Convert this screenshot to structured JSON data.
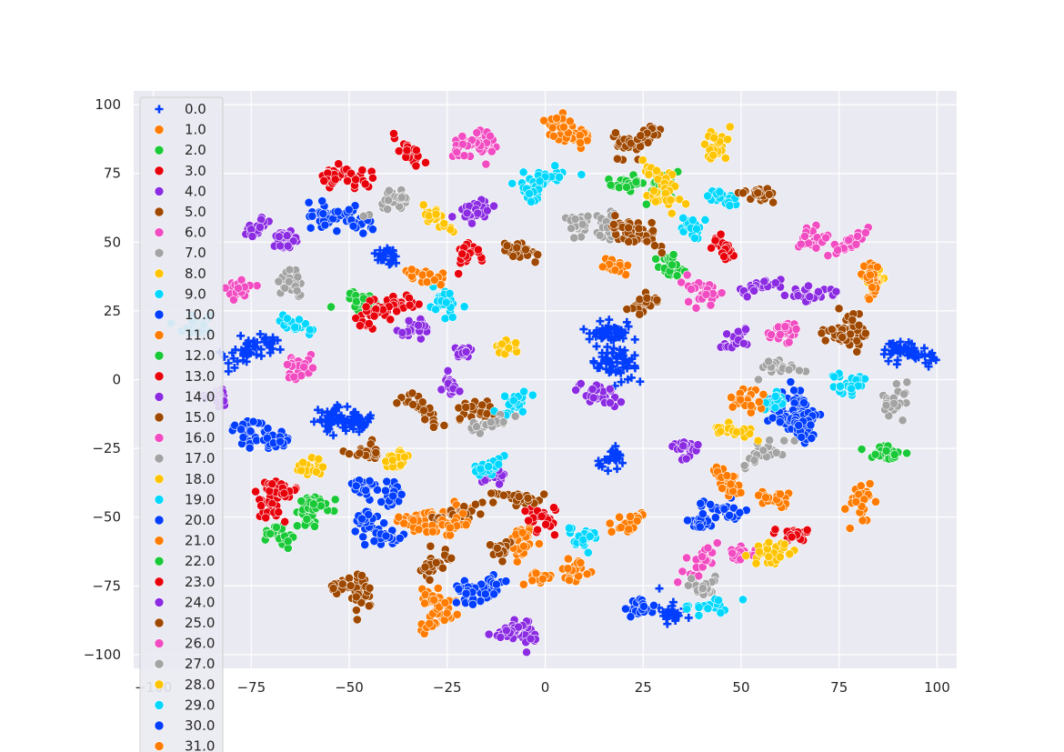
{
  "chart_data": {
    "type": "scatter",
    "title": "",
    "xlabel": "",
    "ylabel": "",
    "xlim": [
      -105,
      105
    ],
    "ylim": [
      -105,
      105
    ],
    "x_ticks": [
      -100,
      -75,
      -50,
      -25,
      0,
      25,
      50,
      75,
      100
    ],
    "y_ticks": [
      100,
      75,
      50,
      25,
      0,
      -25,
      -50,
      -75,
      -100
    ],
    "x_tick_labels": [
      "−100",
      "−75",
      "−50",
      "−25",
      "0",
      "25",
      "50",
      "75",
      "100"
    ],
    "y_tick_labels": [
      "100",
      "75",
      "50",
      "25",
      "0",
      "−25",
      "−50",
      "−75",
      "−100"
    ],
    "grid": true,
    "legend_position": "upper-left",
    "palette": [
      "#023eff",
      "#ff7c00",
      "#1ac938",
      "#e8000b",
      "#8b2be2",
      "#9f4800",
      "#f14cc1",
      "#a3a3a3",
      "#ffc400",
      "#00d7ff"
    ],
    "series": [
      {
        "name": "0.0",
        "marker": "plus",
        "color": "#023eff",
        "clusters": [
          [
            -41,
            45
          ],
          [
            -72,
            12
          ],
          [
            -77,
            10
          ],
          [
            -51,
            -13
          ],
          [
            -55,
            -15
          ],
          [
            -48,
            -16
          ],
          [
            18,
            17
          ],
          [
            15,
            17
          ],
          [
            20,
            6
          ],
          [
            16,
            6
          ],
          [
            17,
            -29
          ],
          [
            90,
            10
          ],
          [
            95,
            9
          ],
          [
            32,
            -85
          ]
        ]
      },
      {
        "name": "1.0",
        "marker": "circle",
        "color": "#ff7c00",
        "clusters": [
          [
            8,
            88
          ],
          [
            4,
            92
          ],
          [
            -26,
            -85
          ],
          [
            -29,
            -80
          ],
          [
            -2,
            -72
          ]
        ]
      },
      {
        "name": "2.0",
        "marker": "circle",
        "color": "#1ac938",
        "clusters": [
          [
            29,
            70
          ],
          [
            21,
            71
          ],
          [
            -60,
            -50
          ],
          [
            -68,
            -56
          ]
        ]
      },
      {
        "name": "3.0",
        "marker": "circle",
        "color": "#e8000b",
        "clusters": [
          [
            -35,
            83
          ],
          [
            -55,
            74
          ],
          [
            -48,
            73
          ],
          [
            -71,
            -46
          ],
          [
            -67,
            -40
          ]
        ]
      },
      {
        "name": "4.0",
        "marker": "circle",
        "color": "#8b2be2",
        "clusters": [
          [
            -73,
            55
          ],
          [
            -66,
            51
          ],
          [
            -16,
            62
          ],
          [
            -83,
            -6
          ],
          [
            -5,
            -93
          ],
          [
            -9,
            -91
          ]
        ]
      },
      {
        "name": "5.0",
        "marker": "circle",
        "color": "#9f4800",
        "clusters": [
          [
            20,
            85
          ],
          [
            26,
            89
          ],
          [
            -51,
            -75
          ],
          [
            -47,
            -78
          ]
        ]
      },
      {
        "name": "6.0",
        "marker": "circle",
        "color": "#f14cc1",
        "clusters": [
          [
            -15,
            86
          ],
          [
            -20,
            86
          ]
        ]
      },
      {
        "name": "7.0",
        "marker": "circle",
        "color": "#a3a3a3",
        "clusters": [
          [
            8,
            56
          ],
          [
            16,
            56
          ]
        ]
      },
      {
        "name": "8.0",
        "marker": "circle",
        "color": "#ffc400",
        "clusters": [
          [
            44,
            85
          ],
          [
            30,
            73
          ],
          [
            30,
            66
          ]
        ]
      },
      {
        "name": "9.0",
        "marker": "circle",
        "color": "#00d7ff",
        "clusters": [
          [
            0,
            73
          ],
          [
            -4,
            69
          ],
          [
            38,
            56
          ],
          [
            44,
            67
          ]
        ]
      },
      {
        "name": "10.0",
        "marker": "circle",
        "color": "#023eff",
        "clusters": [
          [
            -56,
            59
          ],
          [
            -48,
            58
          ],
          [
            -75,
            -19
          ],
          [
            -69,
            -22
          ],
          [
            -46,
            -39
          ],
          [
            -39,
            -42
          ],
          [
            -46,
            -52
          ],
          [
            -40,
            -58
          ],
          [
            -13,
            -76
          ],
          [
            -20,
            -77
          ],
          [
            24,
            -83
          ]
        ]
      },
      {
        "name": "11.0",
        "marker": "circle",
        "color": "#ff7c00",
        "clusters": [
          [
            18,
            41
          ],
          [
            -22,
            -49
          ],
          [
            -33,
            -51
          ],
          [
            -6,
            -58
          ],
          [
            22,
            -51
          ],
          [
            7,
            -70
          ]
        ]
      },
      {
        "name": "12.0",
        "marker": "circle",
        "color": "#1ac938",
        "clusters": [
          [
            32,
            41
          ]
        ]
      },
      {
        "name": "13.0",
        "marker": "circle",
        "color": "#e8000b",
        "clusters": [
          [
            -20,
            46
          ],
          [
            45,
            49
          ]
        ]
      },
      {
        "name": "14.0",
        "marker": "circle",
        "color": "#8b2be2",
        "clusters": [
          [
            -33,
            19
          ],
          [
            -21,
            10
          ]
        ]
      },
      {
        "name": "15.0",
        "marker": "circle",
        "color": "#9f4800",
        "clusters": [
          [
            -6,
            47
          ],
          [
            25,
            53
          ],
          [
            20,
            55
          ],
          [
            -46,
            -26
          ],
          [
            -28,
            -67
          ],
          [
            -31,
            -11
          ],
          [
            -18,
            -11
          ]
        ]
      },
      {
        "name": "16.0",
        "marker": "circle",
        "color": "#f14cc1",
        "clusters": [
          [
            -78,
            33
          ],
          [
            -63,
            5
          ]
        ]
      },
      {
        "name": "17.0",
        "marker": "circle",
        "color": "#a3a3a3",
        "clusters": [
          [
            -65,
            35
          ],
          [
            -38,
            65
          ]
        ]
      },
      {
        "name": "18.0",
        "marker": "circle",
        "color": "#ffc400",
        "clusters": [
          [
            -28,
            59
          ],
          [
            -10,
            12
          ]
        ]
      },
      {
        "name": "19.0",
        "marker": "circle",
        "color": "#00d7ff",
        "clusters": [
          [
            -64,
            20
          ],
          [
            -89,
            20
          ],
          [
            -26,
            29
          ],
          [
            -8,
            -9
          ]
        ]
      },
      {
        "name": "20.0",
        "marker": "circle",
        "color": "#023eff",
        "clusters": [
          [
            65,
            -10
          ],
          [
            61,
            -13
          ],
          [
            40,
            -52
          ],
          [
            45,
            -48
          ]
        ]
      },
      {
        "name": "21.0",
        "marker": "circle",
        "color": "#ff7c00",
        "clusters": [
          [
            -31,
            38
          ],
          [
            46,
            -37
          ],
          [
            59,
            -44
          ],
          [
            80,
            -46
          ]
        ]
      },
      {
        "name": "22.0",
        "marker": "circle",
        "color": "#1ac938",
        "clusters": [
          [
            -47,
            28
          ],
          [
            -59,
            -45
          ],
          [
            87,
            -27
          ]
        ]
      },
      {
        "name": "23.0",
        "marker": "circle",
        "color": "#e8000b",
        "clusters": [
          [
            -37,
            27
          ],
          [
            -44,
            24
          ],
          [
            -1,
            -52
          ],
          [
            63,
            -56
          ]
        ]
      },
      {
        "name": "24.0",
        "marker": "circle",
        "color": "#8b2be2",
        "clusters": [
          [
            55,
            34
          ],
          [
            68,
            31
          ],
          [
            48,
            14
          ],
          [
            -24,
            -2
          ],
          [
            -13,
            -34
          ],
          [
            13,
            -5
          ],
          [
            36,
            -25
          ]
        ]
      },
      {
        "name": "25.0",
        "marker": "circle",
        "color": "#9f4800",
        "clusters": [
          [
            78,
            18
          ],
          [
            75,
            16
          ],
          [
            25,
            28
          ],
          [
            54,
            68
          ],
          [
            -24,
            -49
          ],
          [
            -7,
            -43
          ],
          [
            -11,
            -62
          ]
        ]
      },
      {
        "name": "26.0",
        "marker": "circle",
        "color": "#f14cc1",
        "clusters": [
          [
            61,
            18
          ],
          [
            40,
            32
          ],
          [
            69,
            51
          ],
          [
            49,
            -63
          ],
          [
            40,
            -66
          ],
          [
            77,
            49
          ]
        ]
      },
      {
        "name": "27.0",
        "marker": "circle",
        "color": "#a3a3a3",
        "clusters": [
          [
            60,
            5
          ],
          [
            89,
            -8
          ],
          [
            40,
            -75
          ],
          [
            -14,
            -16
          ],
          [
            56,
            -27
          ]
        ]
      },
      {
        "name": "28.0",
        "marker": "circle",
        "color": "#ffc400",
        "clusters": [
          [
            58,
            -64
          ],
          [
            84,
            37
          ],
          [
            47,
            -18
          ],
          [
            -60,
            -32
          ],
          [
            -38,
            -29
          ]
        ]
      },
      {
        "name": "29.0",
        "marker": "circle",
        "color": "#00d7ff",
        "clusters": [
          [
            58,
            -8
          ],
          [
            42,
            -82
          ],
          [
            77,
            -2
          ],
          [
            10,
            -57
          ],
          [
            -14,
            -31
          ]
        ]
      },
      {
        "name": "30.0",
        "marker": "circle",
        "color": "#023eff",
        "clusters": [
          [
            64,
            -14
          ],
          [
            66,
            -19
          ]
        ]
      },
      {
        "name": "31.0",
        "marker": "circle",
        "color": "#ff7c00",
        "clusters": [
          [
            52,
            -8
          ],
          [
            83,
            37
          ],
          [
            -25,
            -53
          ]
        ]
      }
    ]
  }
}
